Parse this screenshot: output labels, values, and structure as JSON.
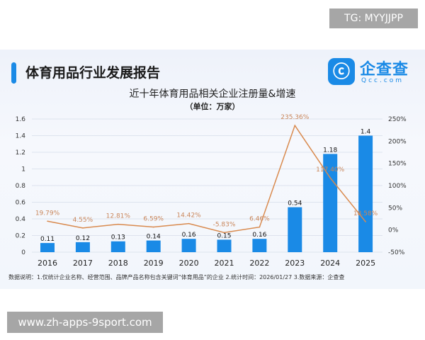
{
  "watermark_top": "TG: MYYJJPP",
  "watermark_bottom": "www.zh-apps-9sport.com",
  "header": {
    "title": "体育用品行业发展报告",
    "logo_text": "企查查",
    "logo_sub": "Qcc.com",
    "logo_glyph": "ⓒ"
  },
  "footnote": "数据说明：1.仅统计企业名称、经营范围、品牌产品名称包含关键词“体育用品”的企业  2.统计时间：2026/01/27   3.数据来源：企查查",
  "colors": {
    "bar": "#1a8ae6",
    "line": "#d98a4e",
    "line_label": "#c9865a",
    "accent": "#1a8ae6"
  },
  "chart_data": {
    "type": "bar+line",
    "title": "近十年体育用品相关企业注册量&增速",
    "subtitle": "（单位：万家）",
    "categories": [
      "2016",
      "2017",
      "2018",
      "2019",
      "2020",
      "2021",
      "2022",
      "2023",
      "2024",
      "2025"
    ],
    "series": [
      {
        "type": "bar",
        "axis": "left",
        "values": [
          0.11,
          0.12,
          0.13,
          0.14,
          0.16,
          0.15,
          0.16,
          0.54,
          1.18,
          1.4
        ],
        "labels": [
          "0.11",
          "0.12",
          "0.13",
          "0.14",
          "0.16",
          "0.15",
          "0.16",
          "0.54",
          "1.18",
          "1.4"
        ]
      },
      {
        "type": "line",
        "axis": "right",
        "values": [
          19.79,
          4.55,
          12.81,
          6.59,
          14.42,
          -5.83,
          6.46,
          235.36,
          117.4,
          18.58
        ],
        "labels": [
          "19.79%",
          "4.55%",
          "12.81%",
          "6.59%",
          "14.42%",
          "-5.83%",
          "6.46%",
          "235.36%",
          "117.40%",
          "18.58%"
        ]
      }
    ],
    "left_axis": {
      "ylim": [
        0,
        1.6
      ],
      "ticks": [
        "0",
        "0.2",
        "0.4",
        "0.6",
        "0.8",
        "1",
        "1.2",
        "1.4",
        "1.6"
      ]
    },
    "right_axis": {
      "ylim": [
        -50,
        250
      ],
      "ticks": [
        "-50%",
        "0%",
        "50%",
        "100%",
        "150%",
        "200%",
        "250%"
      ]
    },
    "grid": true
  }
}
